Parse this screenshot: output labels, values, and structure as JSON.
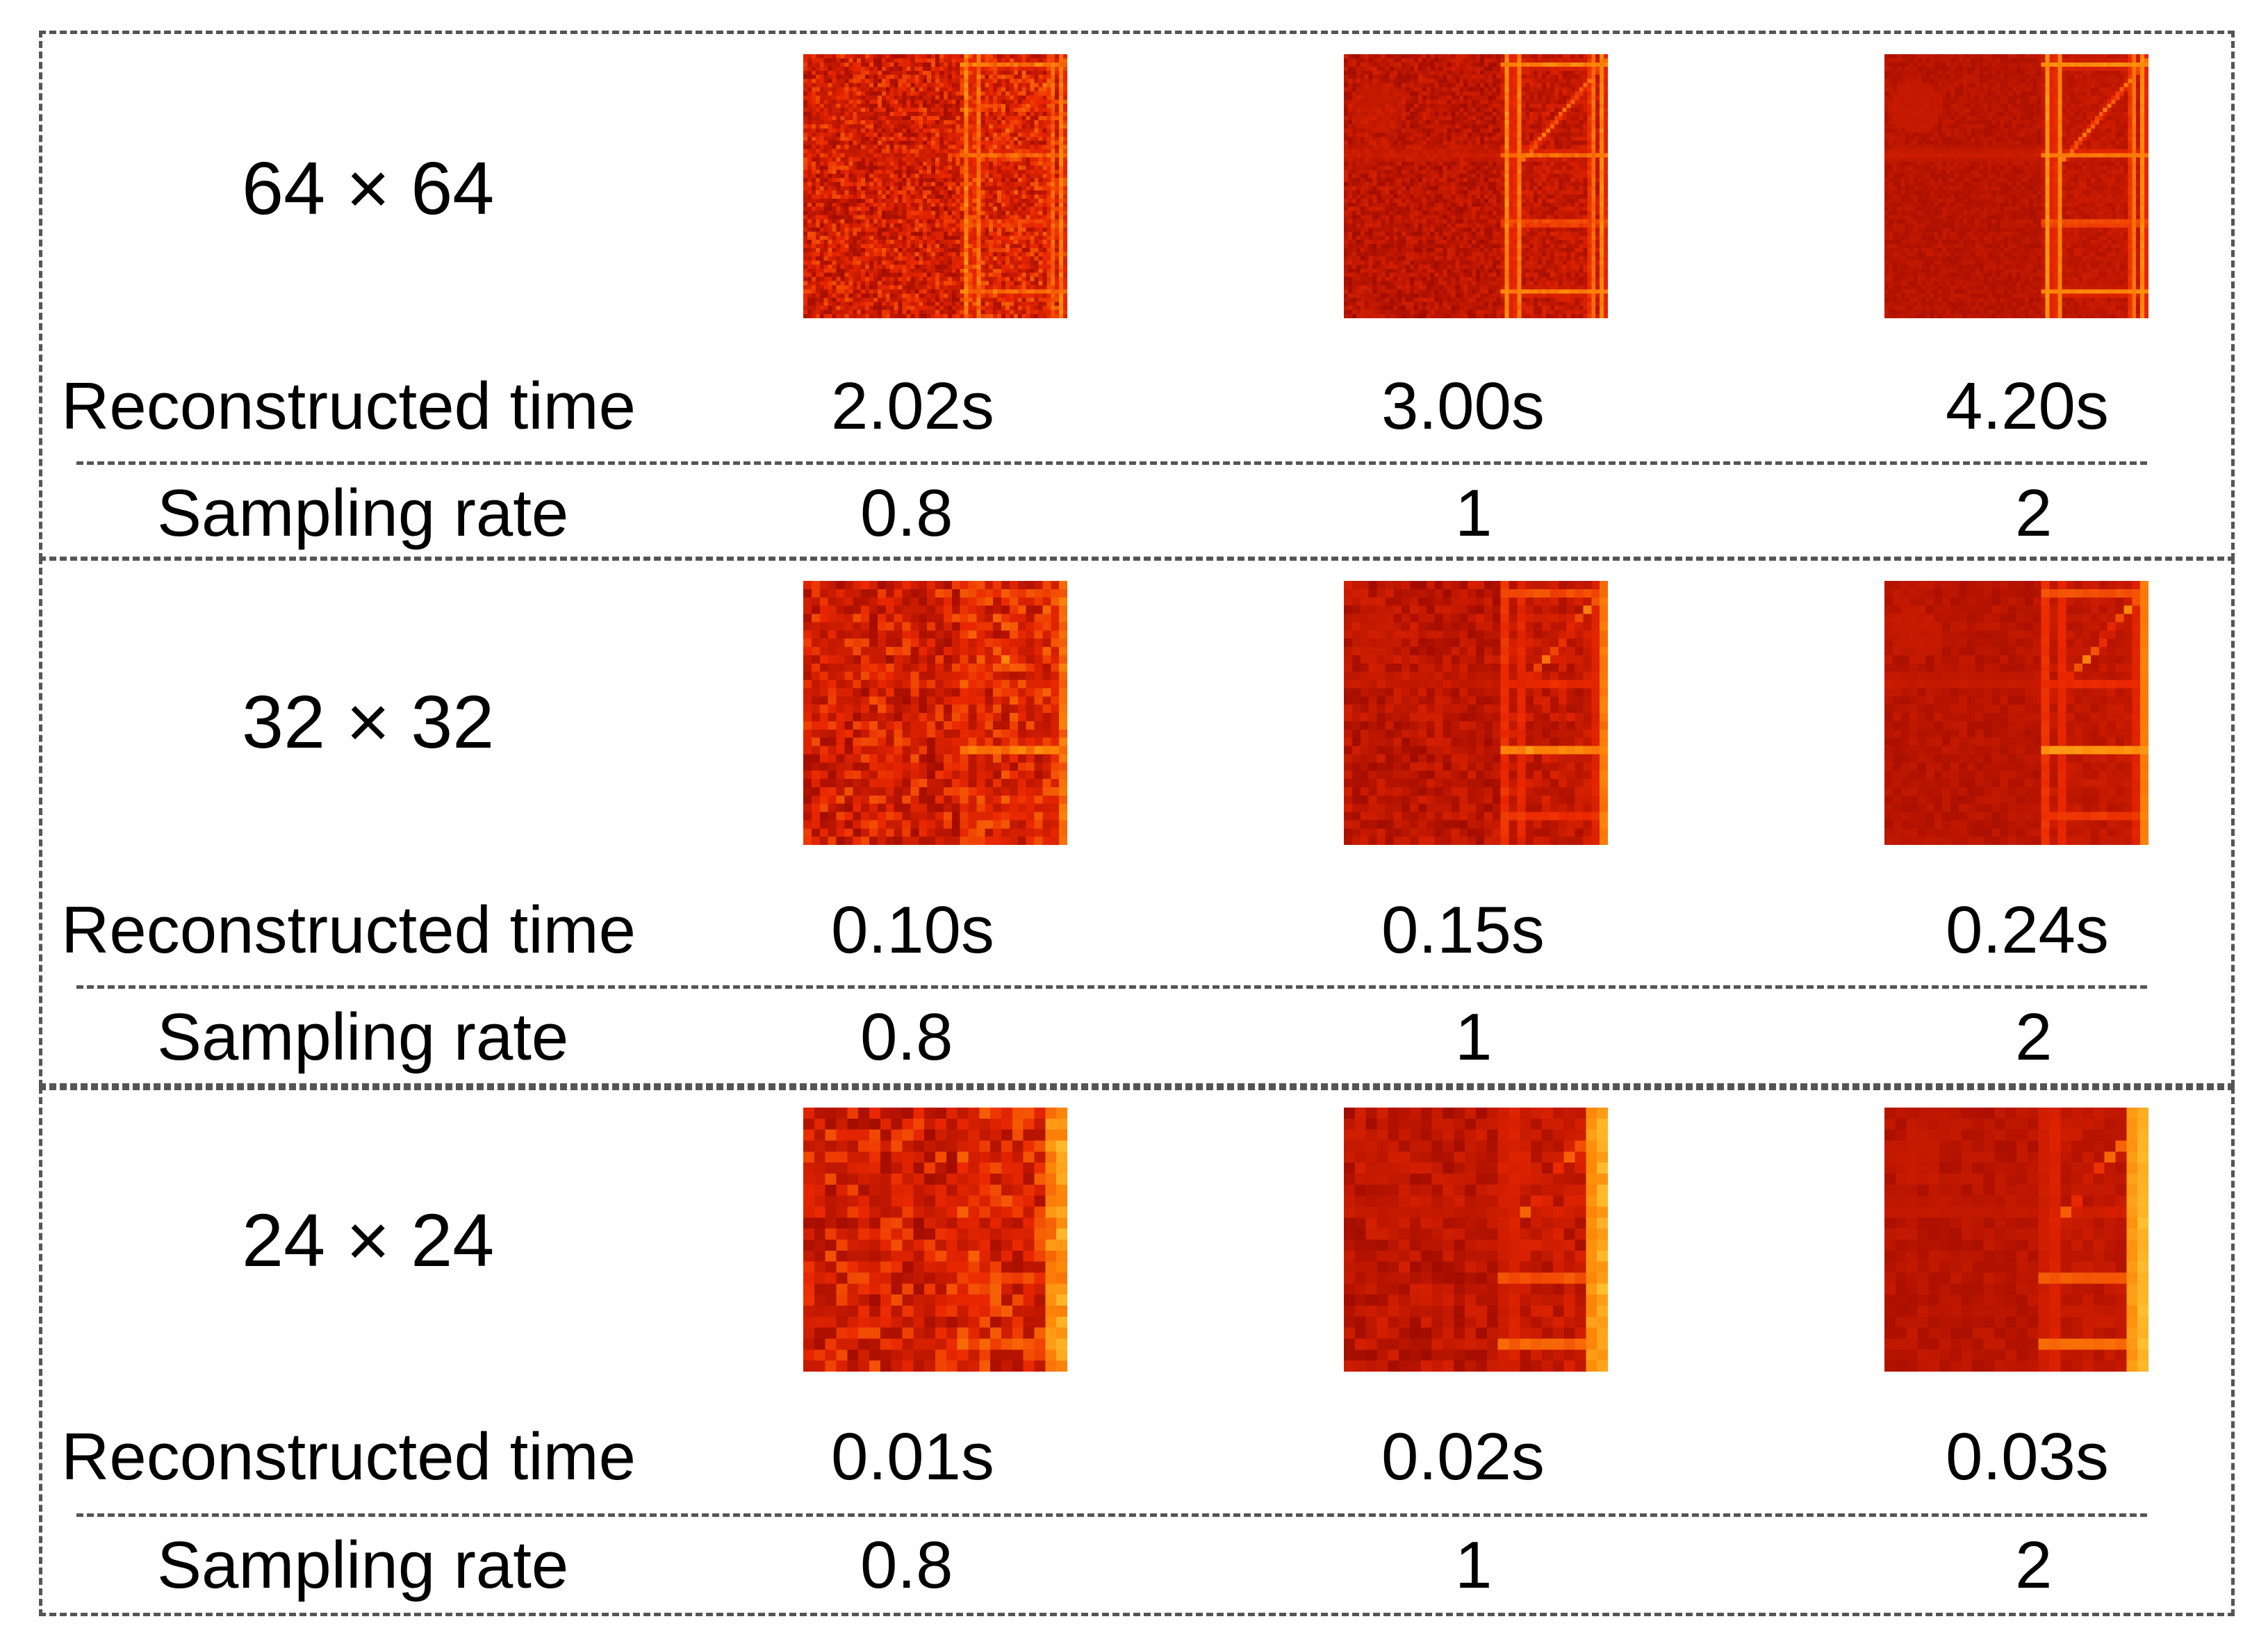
{
  "figure": {
    "row_labels": {
      "time": "Reconstructed time",
      "rate": "Sampling rate"
    },
    "blocks": [
      {
        "size_label": "64 × 64",
        "times": [
          "2.02s",
          "3.00s",
          "4.20s"
        ],
        "rates": [
          "0.8",
          "1",
          "2"
        ],
        "grid": 64
      },
      {
        "size_label": "32 × 32",
        "times": [
          "0.10s",
          "0.15s",
          "0.24s"
        ],
        "rates": [
          "0.8",
          "1",
          "2"
        ],
        "grid": 32
      },
      {
        "size_label": "24 × 24",
        "times": [
          "0.01s",
          "0.02s",
          "0.03s"
        ],
        "rates": [
          "0.8",
          "1",
          "2"
        ],
        "grid": 24
      }
    ],
    "colors": {
      "background_dark": "#b80d00",
      "structure_bright": "#ffe23a",
      "structure_mid": "#ff7a10",
      "border": "#555555"
    }
  }
}
